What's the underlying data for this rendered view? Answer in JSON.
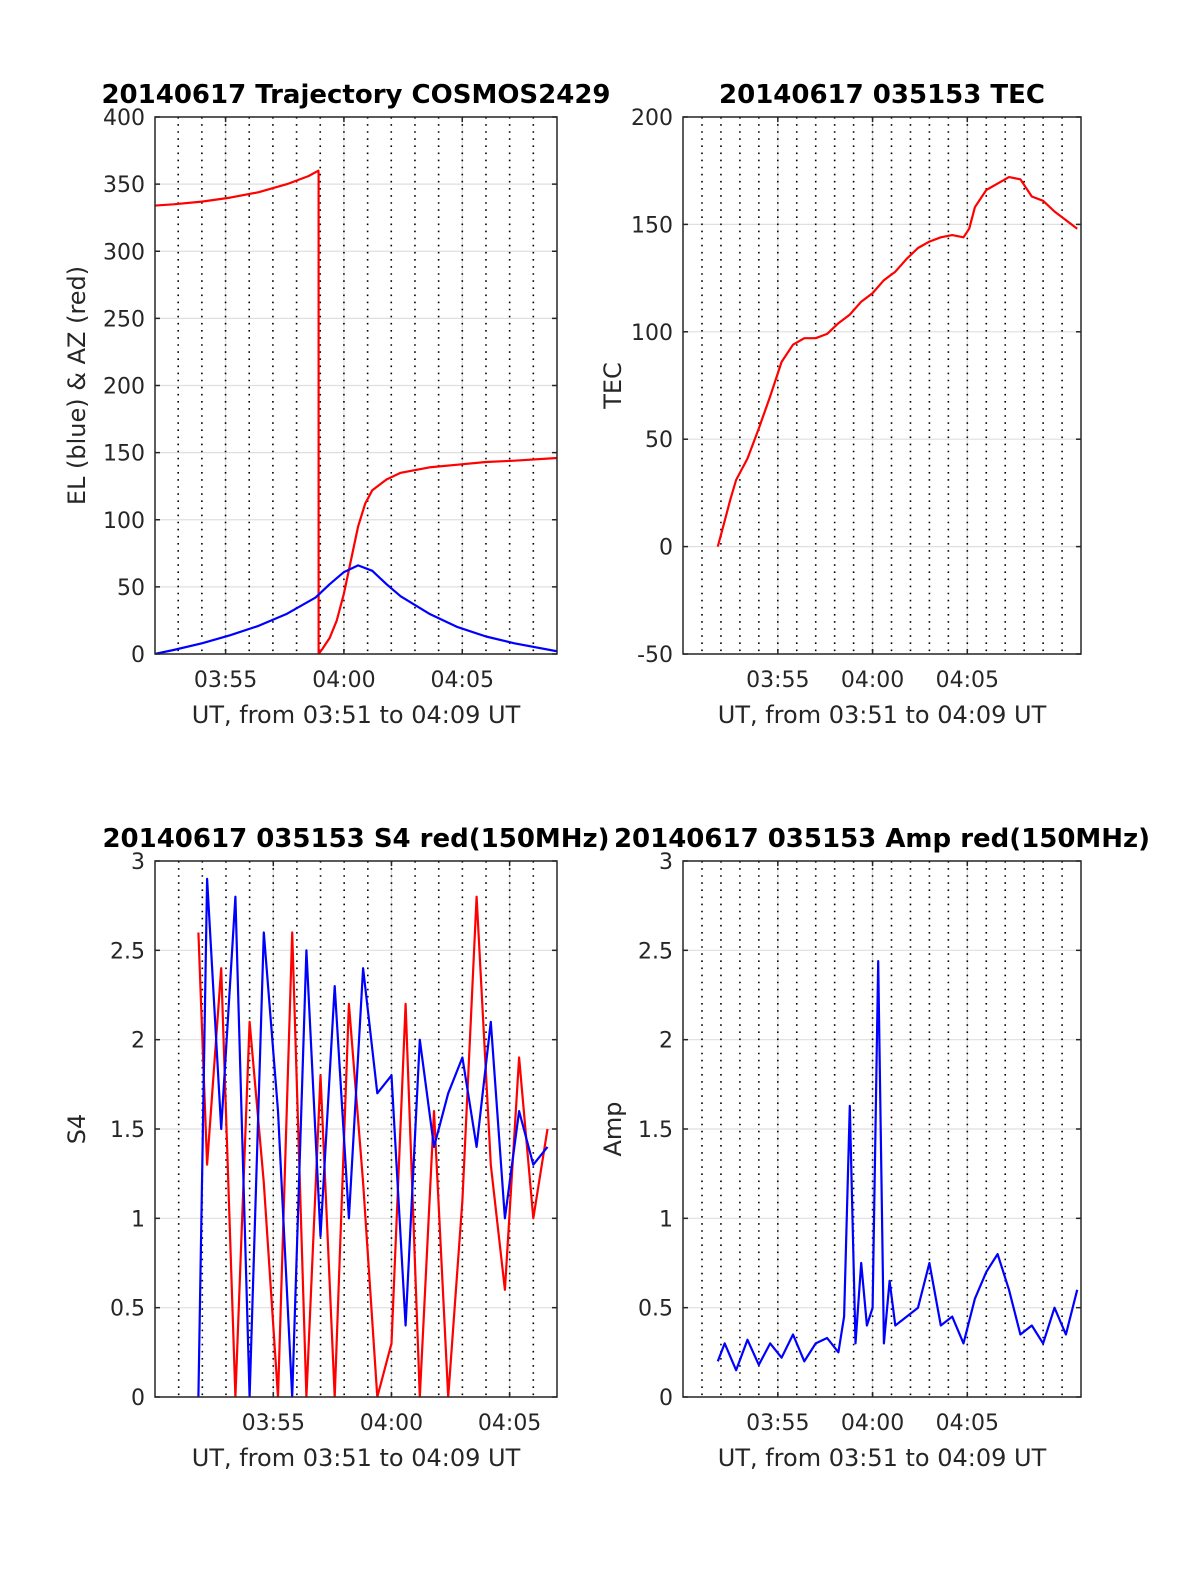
{
  "chart_data": [
    {
      "type": "line",
      "title": "20140617 Trajectory COSMOS2429",
      "xlabel": "UT, from 03:51 to 04:09 UT",
      "ylabel": "EL (blue) & AZ (red)",
      "xlim": [
        3.867,
        4.15
      ],
      "ylim": [
        0,
        400
      ],
      "xticks": [
        {
          "value": 3.9167,
          "label": "03:55"
        },
        {
          "value": 4.0,
          "label": "04:00"
        },
        {
          "value": 4.0833,
          "label": "04:05"
        }
      ],
      "yticks": [
        {
          "value": 0,
          "label": "0"
        },
        {
          "value": 50,
          "label": "50"
        },
        {
          "value": 100,
          "label": "100"
        },
        {
          "value": 150,
          "label": "150"
        },
        {
          "value": 200,
          "label": "200"
        },
        {
          "value": 250,
          "label": "250"
        },
        {
          "value": 300,
          "label": "300"
        },
        {
          "value": 350,
          "label": "350"
        },
        {
          "value": 400,
          "label": "400"
        }
      ],
      "grid": true,
      "series": [
        {
          "color": "#ff0000",
          "x": [
            3.8667,
            3.88,
            3.9,
            3.92,
            3.94,
            3.96,
            3.975,
            3.982,
            3.9822,
            3.9822,
            3.985,
            3.99,
            3.995,
            4.0,
            4.005,
            4.01,
            4.015,
            4.02,
            4.03,
            4.04,
            4.06,
            4.08,
            4.1,
            4.12,
            4.15
          ],
          "y": [
            334,
            335,
            337,
            340,
            344,
            350,
            356,
            360,
            358,
            0,
            4,
            12,
            25,
            45,
            70,
            95,
            112,
            122,
            130,
            135,
            139,
            141,
            143,
            144,
            146
          ]
        },
        {
          "color": "#0000ff",
          "x": [
            3.8667,
            3.88,
            3.9,
            3.92,
            3.94,
            3.96,
            3.98,
            3.99,
            4.0,
            4.01,
            4.02,
            4.03,
            4.04,
            4.06,
            4.08,
            4.1,
            4.12,
            4.15
          ],
          "y": [
            0,
            3,
            8,
            14,
            21,
            30,
            42,
            52,
            61,
            66,
            62,
            52,
            43,
            30,
            20,
            13,
            8,
            2
          ]
        }
      ]
    },
    {
      "type": "line",
      "title": "20140617 035153 TEC",
      "xlabel": "UT, from 03:51 to 04:09 UT",
      "ylabel": "TEC",
      "xlim": [
        3.8333,
        4.1833
      ],
      "ylim": [
        -50,
        200
      ],
      "xticks": [
        {
          "value": 3.9167,
          "label": "03:55"
        },
        {
          "value": 4.0,
          "label": "04:00"
        },
        {
          "value": 4.0833,
          "label": "04:05"
        }
      ],
      "yticks": [
        {
          "value": -50,
          "label": "-50"
        },
        {
          "value": 0,
          "label": "0"
        },
        {
          "value": 50,
          "label": "50"
        },
        {
          "value": 100,
          "label": "100"
        },
        {
          "value": 150,
          "label": "150"
        },
        {
          "value": 200,
          "label": "200"
        }
      ],
      "grid": true,
      "series": [
        {
          "color": "#ff0000",
          "x": [
            3.8639,
            3.87,
            3.875,
            3.88,
            3.89,
            3.9,
            3.91,
            3.92,
            3.93,
            3.94,
            3.95,
            3.96,
            3.97,
            3.98,
            3.99,
            4.0,
            4.01,
            4.02,
            4.03,
            4.04,
            4.05,
            4.06,
            4.07,
            4.08,
            4.085,
            4.09,
            4.1,
            4.11,
            4.12,
            4.13,
            4.14,
            4.15,
            4.16,
            4.17,
            4.18
          ],
          "y": [
            0,
            12,
            22,
            31,
            41,
            55,
            70,
            86,
            94,
            97,
            97,
            99,
            104,
            108,
            114,
            118,
            124,
            128,
            134,
            139,
            142,
            144,
            145,
            144,
            148,
            158,
            166,
            169,
            172,
            171,
            163,
            161,
            156,
            152,
            148
          ]
        }
      ]
    },
    {
      "type": "line",
      "title": "20140617 035153 S4 red(150MHz)",
      "xlabel": "UT, from 03:51 to 04:09 UT",
      "ylabel": "S4",
      "xlim": [
        3.8333,
        4.1167
      ],
      "ylim": [
        0,
        3
      ],
      "xticks": [
        {
          "value": 3.9167,
          "label": "03:55"
        },
        {
          "value": 4.0,
          "label": "04:00"
        },
        {
          "value": 4.0833,
          "label": "04:05"
        }
      ],
      "yticks": [
        {
          "value": 0,
          "label": "0"
        },
        {
          "value": 0.5,
          "label": "0.5"
        },
        {
          "value": 1,
          "label": "1"
        },
        {
          "value": 1.5,
          "label": "1.5"
        },
        {
          "value": 2,
          "label": "2"
        },
        {
          "value": 2.5,
          "label": "2.5"
        },
        {
          "value": 3,
          "label": "3"
        }
      ],
      "grid": true,
      "series": [
        {
          "color": "#ff0000",
          "x": [
            3.8639,
            3.87,
            3.88,
            3.89,
            3.9,
            3.91,
            3.92,
            3.93,
            3.94,
            3.95,
            3.96,
            3.97,
            3.98,
            3.99,
            4.0,
            4.01,
            4.02,
            4.03,
            4.04,
            4.05,
            4.06,
            4.07,
            4.08,
            4.09,
            4.1,
            4.11
          ],
          "y": [
            2.6,
            1.3,
            2.4,
            0,
            2.1,
            1.2,
            0,
            2.6,
            0,
            1.8,
            0,
            2.2,
            1.2,
            0,
            0.3,
            2.2,
            0,
            1.6,
            0,
            1.1,
            2.8,
            1.3,
            0.6,
            1.9,
            1.0,
            1.5
          ]
        },
        {
          "color": "#0000ff",
          "x": [
            3.8639,
            3.87,
            3.88,
            3.89,
            3.9,
            3.91,
            3.92,
            3.93,
            3.94,
            3.95,
            3.96,
            3.97,
            3.98,
            3.99,
            4.0,
            4.01,
            4.02,
            4.03,
            4.04,
            4.05,
            4.06,
            4.07,
            4.08,
            4.09,
            4.1,
            4.11
          ],
          "y": [
            0,
            2.9,
            1.5,
            2.8,
            0,
            2.6,
            1.6,
            0,
            2.5,
            0.9,
            2.3,
            1.0,
            2.4,
            1.7,
            1.8,
            0.4,
            2.0,
            1.4,
            1.7,
            1.9,
            1.4,
            2.1,
            1.0,
            1.6,
            1.3,
            1.4
          ]
        }
      ]
    },
    {
      "type": "line",
      "title": "20140617 035153 Amp red(150MHz)",
      "xlabel": "UT, from 03:51 to 04:09 UT",
      "ylabel": "Amp",
      "xlim": [
        3.8333,
        4.1833
      ],
      "ylim": [
        0,
        3
      ],
      "xticks": [
        {
          "value": 3.9167,
          "label": "03:55"
        },
        {
          "value": 4.0,
          "label": "04:00"
        },
        {
          "value": 4.0833,
          "label": "04:05"
        }
      ],
      "yticks": [
        {
          "value": 0,
          "label": "0"
        },
        {
          "value": 0.5,
          "label": "0.5"
        },
        {
          "value": 1,
          "label": "1"
        },
        {
          "value": 1.5,
          "label": "1.5"
        },
        {
          "value": 2,
          "label": "2"
        },
        {
          "value": 2.5,
          "label": "2.5"
        },
        {
          "value": 3,
          "label": "3"
        }
      ],
      "grid": true,
      "series": [
        {
          "color": "#0000ff",
          "x": [
            3.8639,
            3.87,
            3.88,
            3.89,
            3.9,
            3.91,
            3.92,
            3.93,
            3.94,
            3.95,
            3.96,
            3.97,
            3.975,
            3.98,
            3.985,
            3.99,
            3.995,
            4.0,
            4.005,
            4.01,
            4.015,
            4.02,
            4.03,
            4.04,
            4.05,
            4.06,
            4.07,
            4.08,
            4.09,
            4.1,
            4.11,
            4.12,
            4.13,
            4.14,
            4.15,
            4.16,
            4.17,
            4.18
          ],
          "y": [
            0.2,
            0.3,
            0.15,
            0.32,
            0.18,
            0.3,
            0.22,
            0.35,
            0.2,
            0.3,
            0.33,
            0.25,
            0.45,
            1.63,
            0.3,
            0.75,
            0.4,
            0.5,
            2.44,
            0.3,
            0.65,
            0.4,
            0.45,
            0.5,
            0.75,
            0.4,
            0.45,
            0.3,
            0.55,
            0.7,
            0.8,
            0.6,
            0.35,
            0.4,
            0.3,
            0.5,
            0.35,
            0.6
          ]
        }
      ]
    }
  ]
}
